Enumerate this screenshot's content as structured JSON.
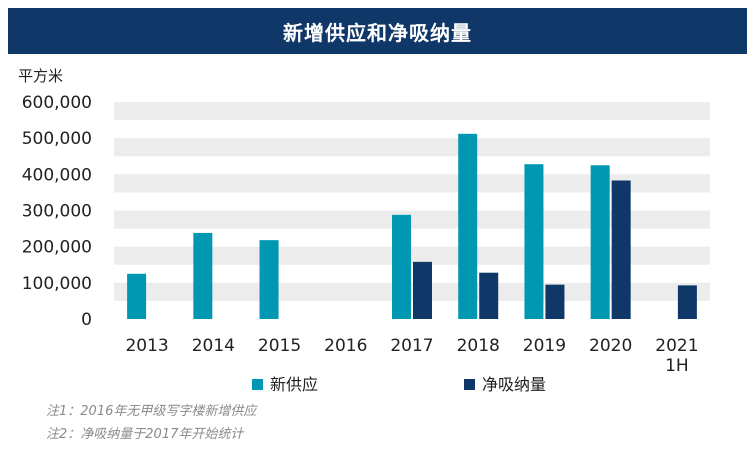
{
  "chart_data": {
    "type": "bar",
    "title": "新增供应和净吸纳量",
    "ylabel": "平方米",
    "ylim": [
      0,
      600000
    ],
    "yticks": [
      "0",
      "100,000",
      "200,000",
      "300,000",
      "400,000",
      "500,000",
      "600,000"
    ],
    "categories": [
      "2013",
      "2014",
      "2015",
      "2016",
      "2017",
      "2018",
      "2019",
      "2020",
      "2021\n1H"
    ],
    "series": [
      {
        "name": "新供应",
        "color": "#0097b2",
        "values": [
          125000,
          238000,
          218000,
          0,
          288000,
          512000,
          428000,
          425000,
          0
        ]
      },
      {
        "name": "净吸纳量",
        "color": "#0f3869",
        "values": [
          0,
          0,
          0,
          0,
          158000,
          128000,
          95000,
          383000,
          93000
        ]
      }
    ],
    "grid": "horizontal bands",
    "legend": "bottom"
  },
  "notes": [
    "注1：2016年无甲级写字楼新增供应",
    "注2：净吸纳量于2017年开始统计"
  ]
}
